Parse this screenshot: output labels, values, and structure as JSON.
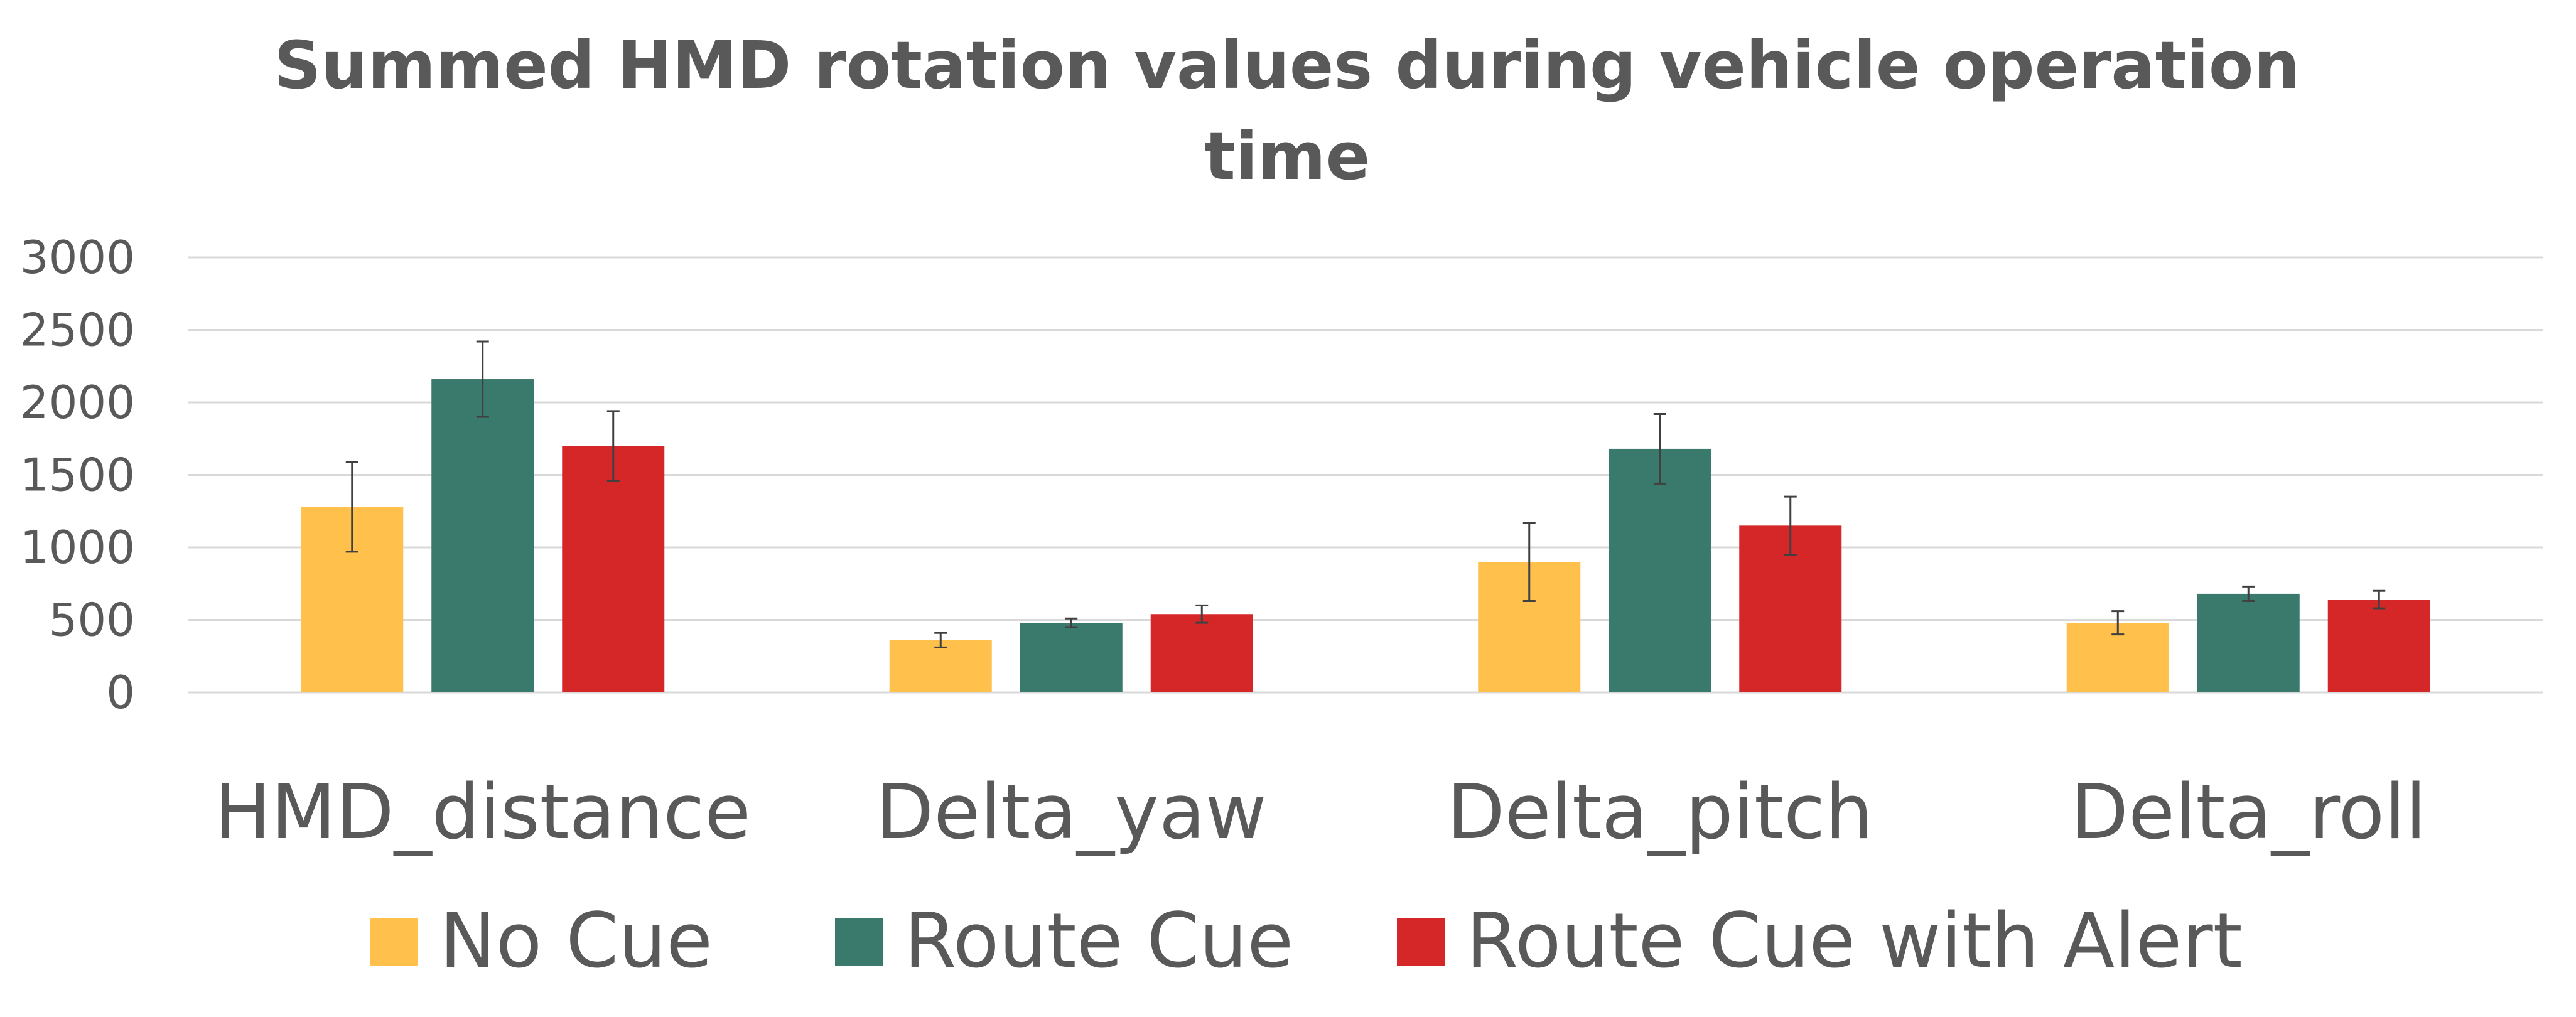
{
  "chart_data": {
    "type": "bar",
    "title_lines": [
      "Summed HMD rotation values during vehicle operation",
      "time"
    ],
    "categories": [
      "HMD_distance",
      "Delta_yaw",
      "Delta_pitch",
      "Delta_roll"
    ],
    "series": [
      {
        "name": "No Cue",
        "color": "#ffc04c",
        "values": [
          1280,
          360,
          900,
          480
        ],
        "errors": [
          310,
          50,
          270,
          80
        ]
      },
      {
        "name": "Route Cue",
        "color": "#3a7a6c",
        "values": [
          2160,
          480,
          1680,
          680
        ],
        "errors": [
          260,
          30,
          240,
          50
        ]
      },
      {
        "name": "Route Cue with Alert",
        "color": "#d62728",
        "values": [
          1700,
          540,
          1150,
          640
        ],
        "errors": [
          240,
          60,
          200,
          60
        ]
      }
    ],
    "ylim": [
      0,
      3000
    ],
    "yticks": [
      0,
      500,
      1000,
      1500,
      2000,
      2500,
      3000
    ],
    "grid": true,
    "legend_position": "bottom"
  }
}
